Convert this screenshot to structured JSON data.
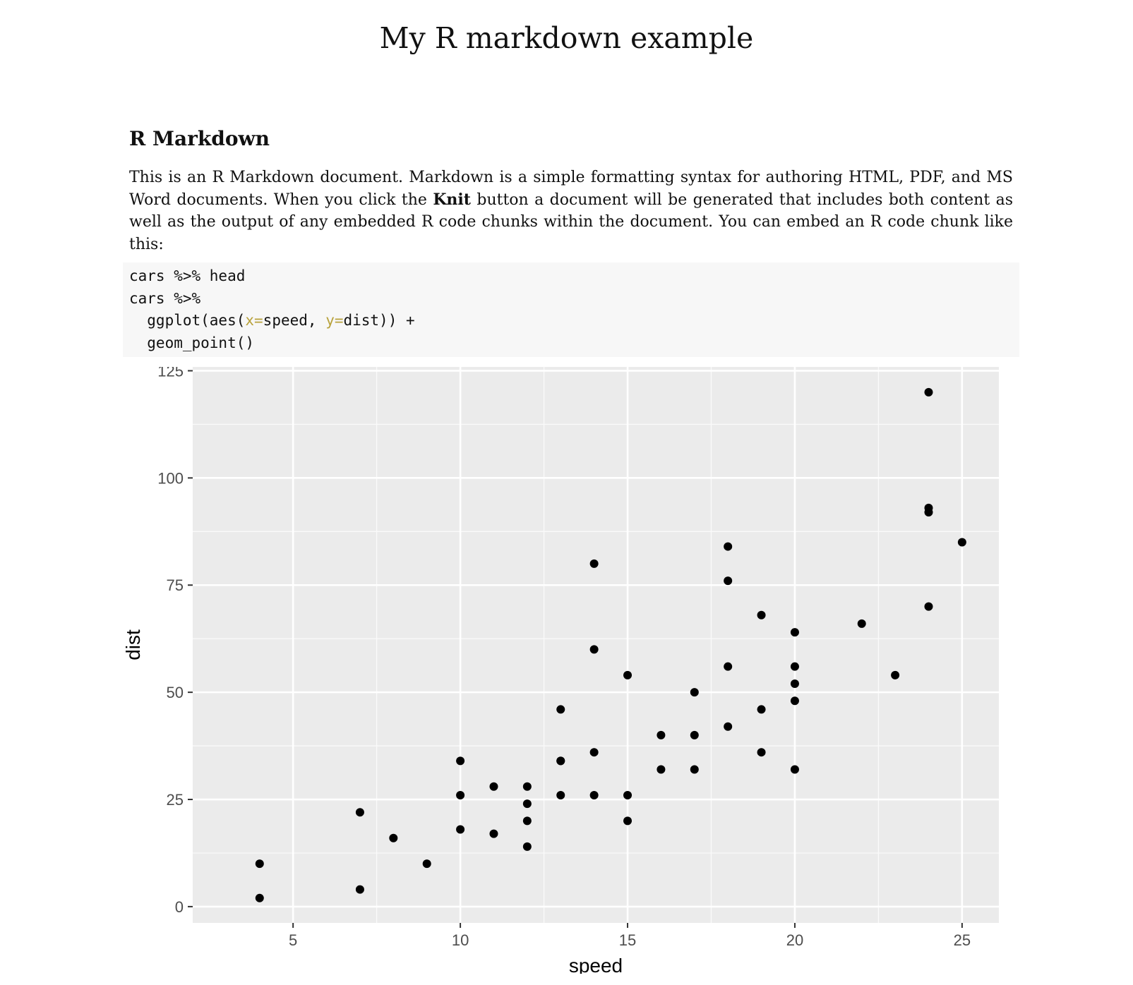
{
  "document": {
    "title": "My R markdown example",
    "section_heading": "R Markdown",
    "paragraph": {
      "part1": "This is an R Markdown document. Markdown is a simple formatting syntax for authoring HTML, PDF, and MS Word documents. When you click the ",
      "bold": "Knit",
      "part2": " button a document will be generated that includes both content as well as the output of any embedded R code chunks within the document. You can embed an R code chunk like this:"
    },
    "code": {
      "line1": "cars %>% head",
      "line2": "cars %>%",
      "line3_pre": "  ggplot(aes(",
      "line3_arg1": "x=",
      "line3_mid": "speed, ",
      "line3_arg2": "y=",
      "line3_post": "dist)) +",
      "line4": "  geom_point()",
      "arg_color": "#b8a23c"
    }
  },
  "chart_data": {
    "type": "scatter",
    "xlabel": "speed",
    "ylabel": "dist",
    "xlim": [
      2,
      26.1
    ],
    "ylim": [
      -3.8,
      125.9
    ],
    "x_ticks": [
      5,
      10,
      15,
      20,
      25
    ],
    "y_ticks": [
      0,
      25,
      50,
      75,
      100,
      125
    ],
    "grid": true,
    "panel_background": "#ebebeb",
    "point_color": "#000000",
    "points": [
      [
        4,
        2
      ],
      [
        4,
        10
      ],
      [
        7,
        4
      ],
      [
        7,
        22
      ],
      [
        8,
        16
      ],
      [
        9,
        10
      ],
      [
        10,
        18
      ],
      [
        10,
        26
      ],
      [
        10,
        34
      ],
      [
        11,
        17
      ],
      [
        11,
        28
      ],
      [
        12,
        14
      ],
      [
        12,
        20
      ],
      [
        12,
        24
      ],
      [
        12,
        28
      ],
      [
        13,
        26
      ],
      [
        13,
        34
      ],
      [
        13,
        34
      ],
      [
        13,
        46
      ],
      [
        14,
        26
      ],
      [
        14,
        36
      ],
      [
        14,
        60
      ],
      [
        14,
        80
      ],
      [
        15,
        20
      ],
      [
        15,
        26
      ],
      [
        15,
        54
      ],
      [
        16,
        32
      ],
      [
        16,
        40
      ],
      [
        17,
        32
      ],
      [
        17,
        40
      ],
      [
        17,
        50
      ],
      [
        18,
        42
      ],
      [
        18,
        56
      ],
      [
        18,
        76
      ],
      [
        18,
        84
      ],
      [
        19,
        36
      ],
      [
        19,
        46
      ],
      [
        19,
        68
      ],
      [
        20,
        32
      ],
      [
        20,
        48
      ],
      [
        20,
        52
      ],
      [
        20,
        56
      ],
      [
        20,
        64
      ],
      [
        22,
        66
      ],
      [
        23,
        54
      ],
      [
        24,
        70
      ],
      [
        24,
        92
      ],
      [
        24,
        93
      ],
      [
        24,
        120
      ],
      [
        25,
        85
      ]
    ]
  }
}
